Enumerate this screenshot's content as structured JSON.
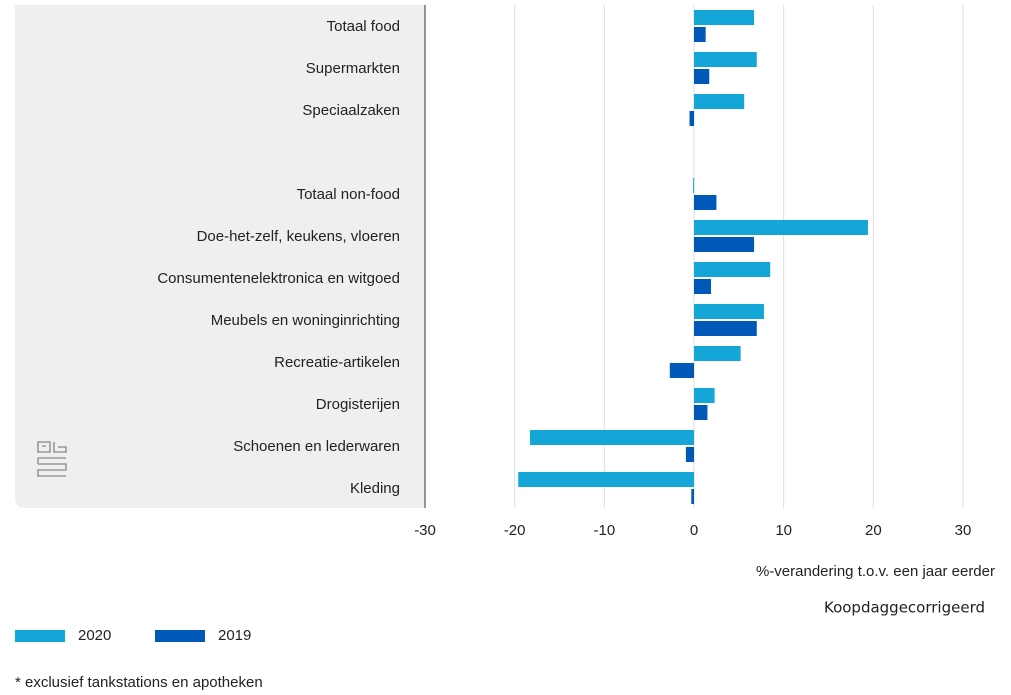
{
  "chart_data": {
    "type": "bar",
    "orientation": "horizontal",
    "categories": [
      "Totaal food",
      "Supermarkten",
      "Speciaalzaken",
      null,
      "Totaal non-food",
      "Doe-het-zelf, keukens, vloeren",
      "Consumentenelektronica en witgoed",
      "Meubels en woninginrichting",
      "Recreatie-artikelen",
      "Drogisterijen",
      "Schoenen en lederwaren",
      "Kleding"
    ],
    "series": [
      {
        "name": "2020",
        "color": "#13a6d6",
        "values": [
          6.7,
          7.0,
          5.6,
          null,
          -0.1,
          19.4,
          8.5,
          7.8,
          5.2,
          2.3,
          -18.3,
          -19.6
        ]
      },
      {
        "name": "2019",
        "color": "#0058b8",
        "values": [
          1.3,
          1.7,
          -0.5,
          null,
          2.5,
          6.7,
          1.9,
          7.0,
          -2.7,
          1.5,
          -0.9,
          -0.3
        ]
      }
    ],
    "xlim": [
      -30,
      30
    ],
    "xticks": [
      -30,
      -20,
      -10,
      0,
      10,
      20,
      30
    ],
    "grid": true,
    "x_label": "%-verandering t.o.v. een jaar eerder",
    "note": "Koopdaggecorrigeerd",
    "footnote": "* exclusief tankstations en apotheken",
    "legend": "bottom-left"
  }
}
